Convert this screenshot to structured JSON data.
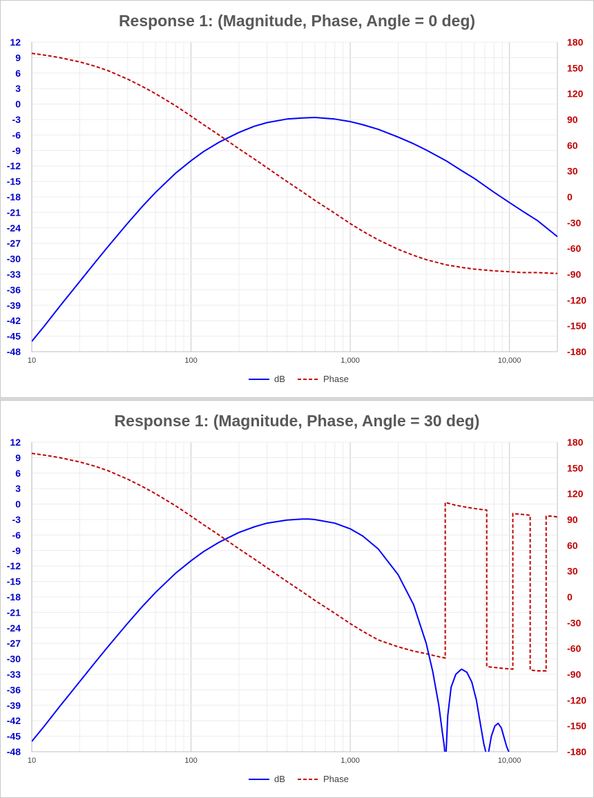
{
  "chart_data": [
    {
      "type": "line",
      "title": "Response 1: (Magnitude, Phase, Angle = 0 deg)",
      "x_scale": "log",
      "xlim": [
        10,
        20000
      ],
      "x_ticks": [
        10,
        100,
        1000,
        10000
      ],
      "x_tick_labels": [
        "10",
        "100",
        "1,000",
        "10,000"
      ],
      "y_left_lim": [
        -48,
        12
      ],
      "y_left_ticks": [
        12,
        9,
        6,
        3,
        0,
        -3,
        -6,
        -9,
        -12,
        -15,
        -18,
        -21,
        -24,
        -27,
        -30,
        -33,
        -36,
        -39,
        -42,
        -45,
        -48
      ],
      "y_right_lim": [
        -180,
        180
      ],
      "y_right_ticks": [
        180,
        150,
        120,
        90,
        60,
        30,
        0,
        -30,
        -60,
        -90,
        -120,
        -150,
        -180
      ],
      "grid": true,
      "legend_position": "bottom",
      "series": [
        {
          "name": "dB",
          "axis": "left",
          "color": "#0000ff",
          "dash": "solid",
          "x": [
            10,
            12,
            15,
            20,
            25,
            30,
            40,
            50,
            60,
            80,
            100,
            120,
            150,
            200,
            250,
            300,
            400,
            500,
            600,
            800,
            1000,
            1200,
            1500,
            2000,
            2500,
            3000,
            4000,
            5000,
            6000,
            8000,
            10000,
            12000,
            15000,
            20000
          ],
          "y": [
            -46.0,
            -43.0,
            -39.2,
            -34.4,
            -30.7,
            -27.7,
            -23.1,
            -19.7,
            -17.1,
            -13.4,
            -11.0,
            -9.2,
            -7.4,
            -5.5,
            -4.3,
            -3.6,
            -2.9,
            -2.7,
            -2.6,
            -2.9,
            -3.4,
            -4.0,
            -4.9,
            -6.4,
            -7.7,
            -8.9,
            -11.0,
            -12.9,
            -14.4,
            -17.1,
            -19.1,
            -20.7,
            -22.6,
            -25.7
          ]
        },
        {
          "name": "Phase",
          "axis": "right",
          "color": "#c00000",
          "dash": "dashed",
          "x": [
            10,
            12,
            15,
            20,
            25,
            30,
            40,
            50,
            60,
            80,
            100,
            120,
            150,
            200,
            250,
            300,
            400,
            500,
            600,
            800,
            1000,
            1200,
            1500,
            2000,
            2500,
            3000,
            4000,
            5000,
            6000,
            8000,
            10000,
            12000,
            15000,
            20000
          ],
          "y": [
            167,
            165,
            162,
            157,
            152,
            147,
            137,
            128,
            120,
            106,
            94,
            84,
            72,
            56,
            44,
            34,
            18,
            6,
            -4,
            -19,
            -31,
            -40,
            -50,
            -61,
            -68,
            -73,
            -79,
            -82,
            -84,
            -86,
            -87,
            -88,
            -88,
            -89
          ]
        }
      ]
    },
    {
      "type": "line",
      "title": "Response 1: (Magnitude, Phase, Angle = 30 deg)",
      "x_scale": "log",
      "xlim": [
        10,
        20000
      ],
      "x_ticks": [
        10,
        100,
        1000,
        10000
      ],
      "x_tick_labels": [
        "10",
        "100",
        "1,000",
        "10,000"
      ],
      "y_left_lim": [
        -48,
        12
      ],
      "y_left_ticks": [
        12,
        9,
        6,
        3,
        0,
        -3,
        -6,
        -9,
        -12,
        -15,
        -18,
        -21,
        -24,
        -27,
        -30,
        -33,
        -36,
        -39,
        -42,
        -45,
        -48
      ],
      "y_right_lim": [
        -180,
        180
      ],
      "y_right_ticks": [
        180,
        150,
        120,
        90,
        60,
        30,
        0,
        -30,
        -60,
        -90,
        -120,
        -150,
        -180
      ],
      "grid": true,
      "legend_position": "bottom",
      "series": [
        {
          "name": "dB",
          "axis": "left",
          "color": "#0000ff",
          "dash": "solid",
          "x": [
            10,
            12,
            15,
            20,
            25,
            30,
            40,
            50,
            60,
            80,
            100,
            120,
            150,
            200,
            250,
            300,
            400,
            500,
            550,
            600,
            800,
            1000,
            1200,
            1500,
            2000,
            2500,
            3000,
            3300,
            3600,
            3800,
            3900,
            3920
          ],
          "y": [
            -46.0,
            -43.0,
            -39.2,
            -34.4,
            -30.7,
            -27.7,
            -23.1,
            -19.7,
            -17.1,
            -13.4,
            -11.0,
            -9.2,
            -7.4,
            -5.5,
            -4.4,
            -3.7,
            -3.1,
            -2.9,
            -2.9,
            -3.0,
            -3.7,
            -4.8,
            -6.2,
            -8.7,
            -13.7,
            -19.5,
            -27.0,
            -32.5,
            -39.0,
            -44.5,
            -47.0,
            -48.0
          ]
        },
        {
          "name": "dB",
          "axis": "left",
          "color": "#0000ff",
          "dash": "solid",
          "x": [
            4000,
            4100,
            4300,
            4600,
            5000,
            5400,
            5800,
            6200,
            6600,
            6900,
            7100
          ],
          "y": [
            -48.0,
            -41.0,
            -35.5,
            -33.0,
            -32.0,
            -32.6,
            -34.5,
            -38.0,
            -43.0,
            -46.5,
            -48.0
          ]
        },
        {
          "name": "dB",
          "axis": "left",
          "color": "#0000ff",
          "dash": "solid",
          "x": [
            7400,
            7700,
            8100,
            8500,
            8900,
            9300,
            9600,
            9900
          ],
          "y": [
            -48.0,
            -45.0,
            -43.0,
            -42.5,
            -43.4,
            -45.5,
            -47.0,
            -48.0
          ]
        },
        {
          "name": "Phase",
          "axis": "right",
          "color": "#c00000",
          "dash": "dashed",
          "x": [
            10,
            12,
            15,
            20,
            25,
            30,
            40,
            50,
            60,
            80,
            100,
            120,
            150,
            200,
            250,
            300,
            400,
            500,
            600,
            800,
            1000,
            1200,
            1500,
            2000,
            2500,
            3000,
            3500,
            3950,
            3950,
            4500,
            5500,
            6500,
            7200,
            7200,
            8000,
            9000,
            10500,
            10500,
            12000,
            13500,
            13500,
            15000,
            17000,
            17000,
            18500,
            20000
          ],
          "y": [
            167,
            165,
            162,
            157,
            152,
            147,
            137,
            128,
            120,
            106,
            94,
            84,
            72,
            56,
            44,
            34,
            18,
            6,
            -4,
            -19,
            -31,
            -40,
            -50,
            -58,
            -63,
            -66,
            -69,
            -71,
            110,
            107,
            104,
            102,
            101,
            -81,
            -82,
            -83,
            -84,
            97,
            96,
            95,
            -85,
            -86,
            -86,
            94,
            94,
            93
          ]
        }
      ]
    }
  ]
}
